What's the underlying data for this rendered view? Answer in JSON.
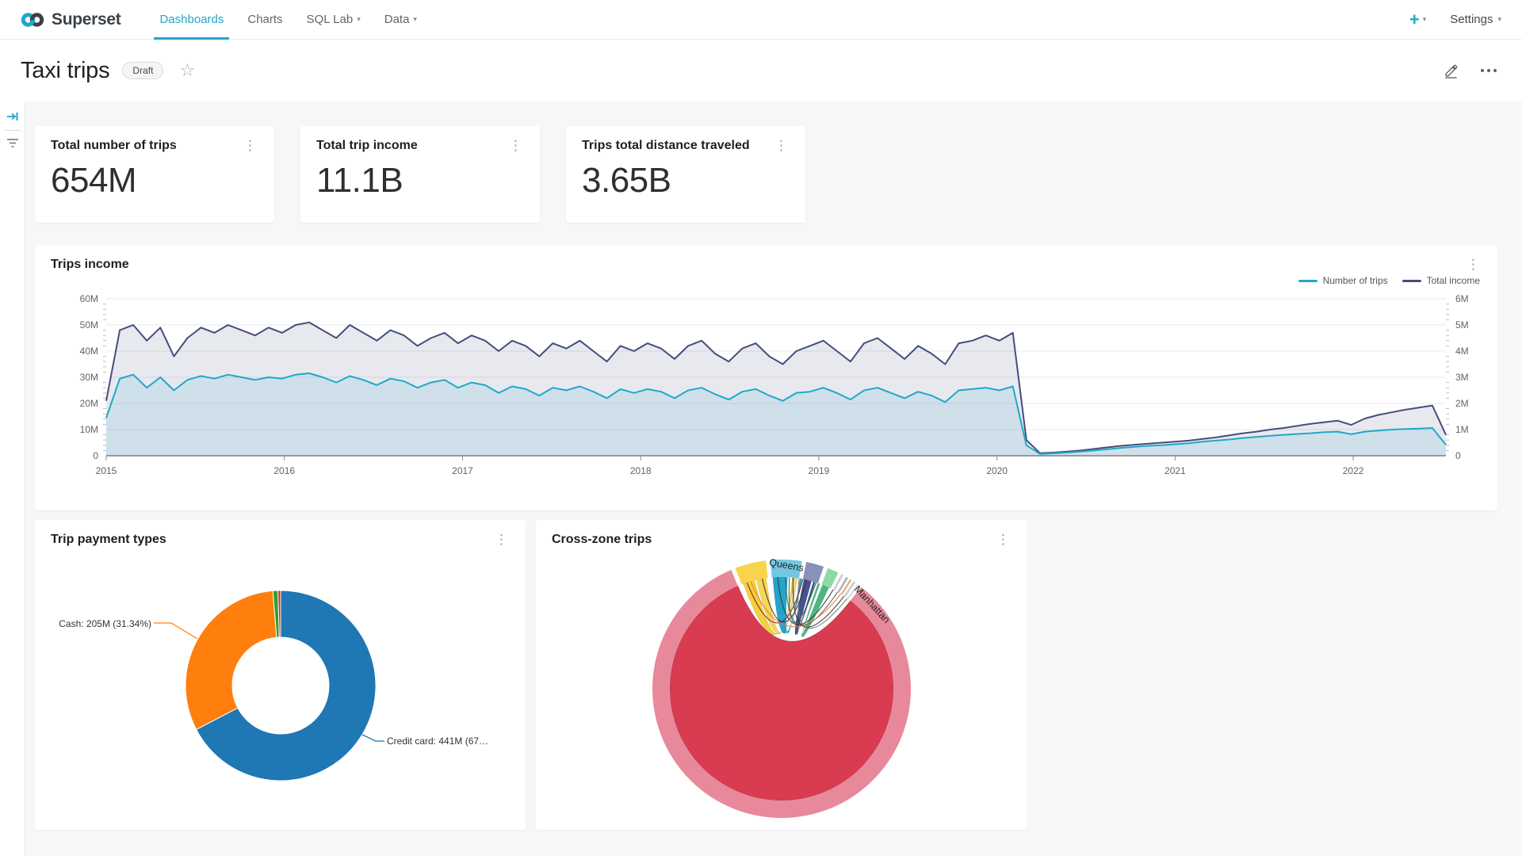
{
  "navbar": {
    "brand": "Superset",
    "items": [
      {
        "label": "Dashboards",
        "active": true,
        "caret": false
      },
      {
        "label": "Charts",
        "active": false,
        "caret": false
      },
      {
        "label": "SQL Lab",
        "active": false,
        "caret": true
      },
      {
        "label": "Data",
        "active": false,
        "caret": true
      }
    ],
    "settings_label": "Settings"
  },
  "header": {
    "title": "Taxi trips",
    "status_badge": "Draft"
  },
  "glyphs": {
    "kebab": "⋮",
    "star": "☆",
    "caret": "▾",
    "plus": "+"
  },
  "kpis": [
    {
      "title": "Total number of trips",
      "value": "654M"
    },
    {
      "title": "Total trip income",
      "value": "11.1B"
    },
    {
      "title": "Trips total distance traveled",
      "value": "3.65B"
    }
  ],
  "colors": {
    "accent": "#20A7C9",
    "series_trips": "#1FA8C9",
    "series_income": "#454E7C",
    "donut_credit": "#1F77B4",
    "donut_cash": "#FF7F0E",
    "grid": "#E9EAF1"
  },
  "chart_data": [
    {
      "type": "line",
      "title": "Trips income",
      "x_range": [
        2015,
        2022.52
      ],
      "x_tick_labels": [
        "2015",
        "2016",
        "2017",
        "2018",
        "2019",
        "2020",
        "2021",
        "2022"
      ],
      "y_left": {
        "ticks": [
          "0",
          "10M",
          "20M",
          "30M",
          "40M",
          "50M",
          "60M"
        ],
        "max": 60
      },
      "y_right": {
        "ticks": [
          "0",
          "1M",
          "2M",
          "3M",
          "4M",
          "5M",
          "6M"
        ],
        "max": 6
      },
      "grid": true,
      "legend_position": "top-right",
      "series": [
        {
          "name": "Number of trips",
          "axis": "right",
          "color": "#1FA8C9",
          "values": [
            1.45,
            2.95,
            3.1,
            2.6,
            3,
            2.5,
            2.9,
            3.05,
            2.95,
            3.1,
            3,
            2.9,
            3,
            2.95,
            3.1,
            3.15,
            3,
            2.8,
            3.05,
            2.9,
            2.7,
            2.95,
            2.85,
            2.6,
            2.8,
            2.9,
            2.6,
            2.8,
            2.7,
            2.4,
            2.65,
            2.55,
            2.3,
            2.6,
            2.5,
            2.65,
            2.45,
            2.2,
            2.55,
            2.4,
            2.55,
            2.45,
            2.2,
            2.5,
            2.6,
            2.35,
            2.15,
            2.45,
            2.55,
            2.3,
            2.1,
            2.4,
            2.45,
            2.6,
            2.4,
            2.15,
            2.5,
            2.6,
            2.4,
            2.2,
            2.45,
            2.3,
            2.05,
            2.5,
            2.55,
            2.6,
            2.5,
            2.65,
            0.4,
            0.07,
            0.09,
            0.12,
            0.16,
            0.2,
            0.25,
            0.3,
            0.34,
            0.38,
            0.4,
            0.44,
            0.48,
            0.54,
            0.58,
            0.62,
            0.68,
            0.72,
            0.76,
            0.8,
            0.83,
            0.86,
            0.9,
            0.92,
            0.82,
            0.92,
            0.96,
            1,
            1.02,
            1.04,
            1.06,
            0.42
          ]
        },
        {
          "name": "Total income",
          "axis": "left",
          "color": "#454E7C",
          "values": [
            21,
            48,
            50,
            44,
            49,
            38,
            45,
            49,
            47,
            50,
            48,
            46,
            49,
            47,
            50,
            51,
            48,
            45,
            50,
            47,
            44,
            48,
            46,
            42,
            45,
            47,
            43,
            46,
            44,
            40,
            44,
            42,
            38,
            43,
            41,
            44,
            40,
            36,
            42,
            40,
            43,
            41,
            37,
            42,
            44,
            39,
            36,
            41,
            43,
            38,
            35,
            40,
            42,
            44,
            40,
            36,
            43,
            45,
            41,
            37,
            42,
            39,
            35,
            43,
            44,
            46,
            44,
            47,
            6,
            1,
            1.2,
            1.6,
            2,
            2.6,
            3.2,
            3.8,
            4.2,
            4.6,
            5,
            5.4,
            5.8,
            6.4,
            7,
            7.8,
            8.6,
            9.2,
            10,
            10.6,
            11.4,
            12.2,
            12.8,
            13.4,
            11.8,
            14.2,
            15.6,
            16.6,
            17.6,
            18.4,
            19.2,
            8
          ]
        }
      ]
    },
    {
      "type": "pie",
      "title": "Trip payment types",
      "donut": true,
      "slices": [
        {
          "label": "Credit card",
          "value_label": "Credit card: 441M (67…",
          "value": 441,
          "pct": 67.36,
          "color": "#1F77B4"
        },
        {
          "label": "Cash",
          "value_label": "Cash: 205M (31.34%)",
          "value": 205,
          "pct": 31.34,
          "color": "#FF7F0E"
        },
        {
          "label": null,
          "pct": 0.85,
          "color": "#2CA02C"
        },
        {
          "label": null,
          "pct": 0.45,
          "color": "#D62728"
        }
      ]
    },
    {
      "type": "chord",
      "title": "Cross-zone trips",
      "nodes": [
        {
          "label": "Manhattan",
          "from": 38,
          "to": 337,
          "color": "#E8899B",
          "label_at": 47,
          "label_rotate": 47
        },
        {
          "label": null,
          "from": -21,
          "to": -7,
          "color": "#F8D44C"
        },
        {
          "label": "Queens",
          "from": -5,
          "to": 9,
          "color": "#74C7E0",
          "label_at": 2,
          "label_rotate": 10
        },
        {
          "label": null,
          "from": 11,
          "to": 19,
          "color": "#8891BB"
        },
        {
          "label": null,
          "from": 21,
          "to": 26,
          "color": "#8FD9A8"
        },
        {
          "label": null,
          "from": 27.5,
          "to": 28.5,
          "color": "#C9CDD4"
        },
        {
          "label": null,
          "from": 30,
          "to": 31,
          "color": "#AEB4BC"
        },
        {
          "label": null,
          "from": 32,
          "to": 32.8,
          "color": "#E8A87C"
        },
        {
          "label": null,
          "from": 33.8,
          "to": 34.8,
          "color": "#C9CDD4"
        },
        {
          "label": null,
          "from": 35.8,
          "to": 36.8,
          "color": "#DDE0E4"
        }
      ],
      "ribbons": [
        {
          "a": [
            38,
            337
          ],
          "b": null,
          "color": "#D93B50"
        },
        {
          "a": [
            -20,
            -14
          ],
          "b": [
            5.5,
            6.5
          ],
          "color": "#F5CE30"
        },
        {
          "a": [
            -13,
            -8
          ],
          "b": [
            7,
            8
          ],
          "color": "#F8D44C"
        },
        {
          "a": [
            -4.5,
            3
          ],
          "b": [
            9.5,
            10.5
          ],
          "color": "#17A0C6"
        },
        {
          "a": [
            11.5,
            15.5
          ],
          "b": [
            16.5,
            17.5
          ],
          "color": "#3D4A8B"
        },
        {
          "a": [
            21.5,
            25
          ],
          "b": [
            19,
            20
          ],
          "color": "#43B27A"
        }
      ],
      "links": [
        {
          "a": -18,
          "b": 11,
          "color": "#7A1C2B"
        },
        {
          "a": -10,
          "b": 13,
          "color": "#333333"
        },
        {
          "a": 4,
          "b": 18,
          "color": "#1C6B3C"
        },
        {
          "a": 27.5,
          "b": -2,
          "color": "#333333"
        },
        {
          "a": 30,
          "b": 2,
          "color": "#555555"
        },
        {
          "a": 32,
          "b": -16,
          "color": "#E07B39"
        },
        {
          "a": 34,
          "b": 6,
          "color": "#333333"
        },
        {
          "a": 36,
          "b": 9,
          "color": "#777777"
        }
      ]
    }
  ]
}
